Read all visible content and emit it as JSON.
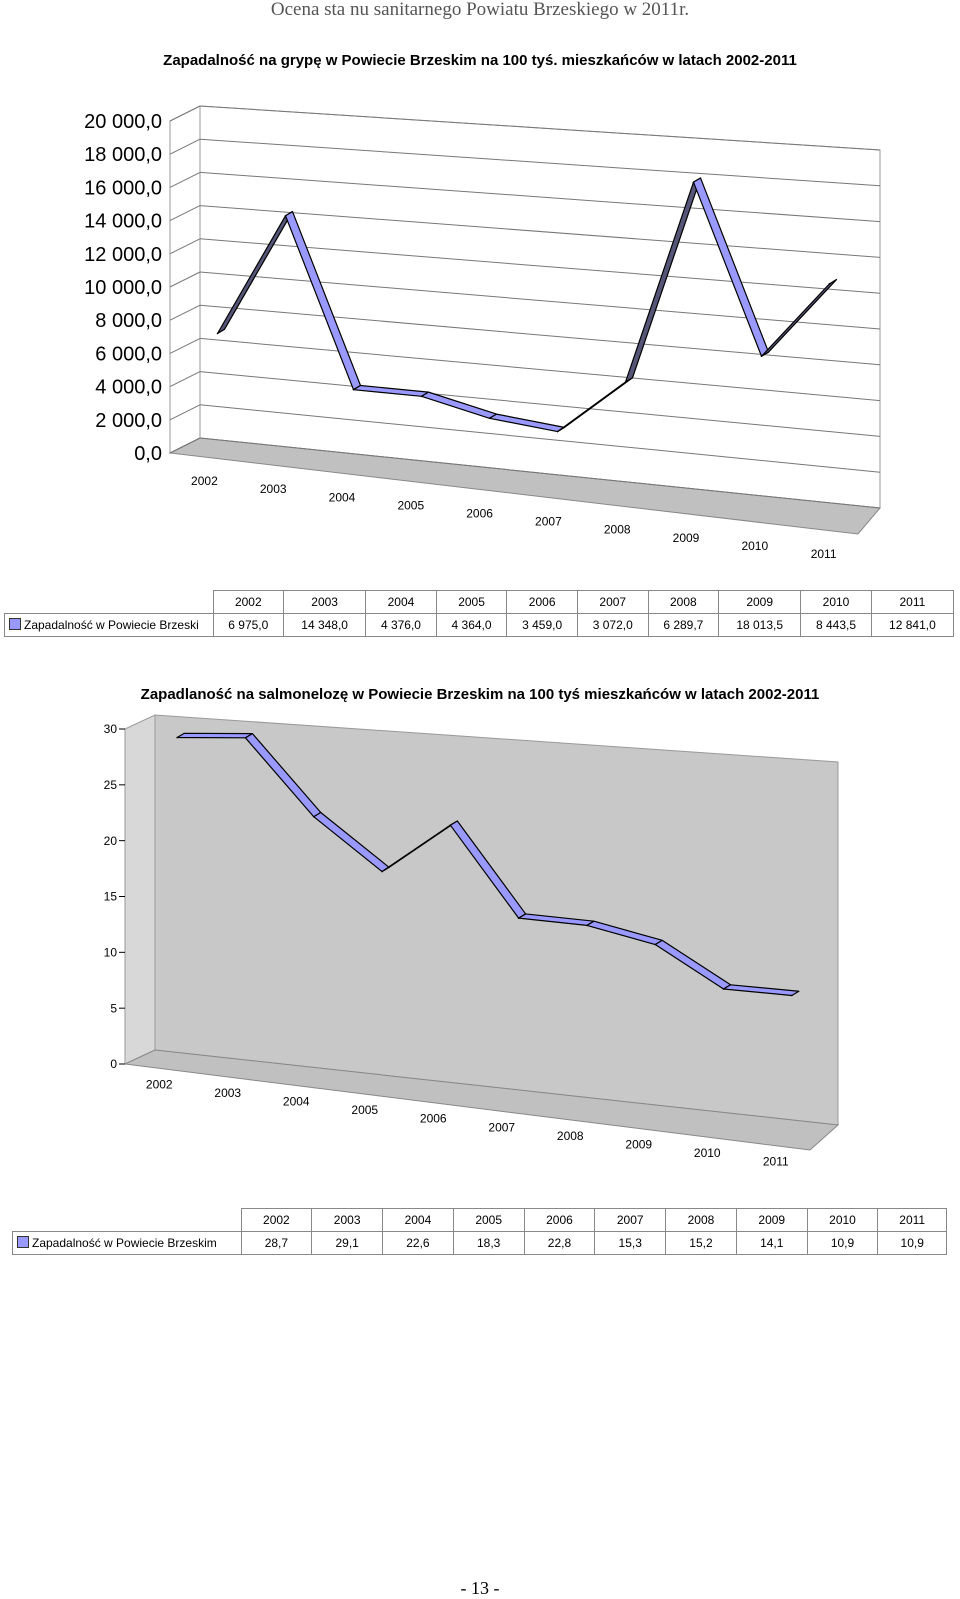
{
  "page": {
    "header": "Ocena sta nu sanitarnego Powiatu Brzeskiego w 2011r.",
    "page_number": "- 13 -"
  },
  "chart_data": [
    {
      "type": "line",
      "title": "Zapadalność na grypę w Powiecie Brzeskim na 100 tyś. mieszkańców w latach 2002-2011",
      "categories": [
        "2002",
        "2003",
        "2004",
        "2005",
        "2006",
        "2007",
        "2008",
        "2009",
        "2010",
        "2011"
      ],
      "series": [
        {
          "name": "Zapadalność w Powiecie Brzeski",
          "values": [
            6975.0,
            14348.0,
            4376.0,
            4364.0,
            3459.0,
            3072.0,
            6289.7,
            18013.5,
            8443.5,
            12841.0
          ],
          "display": [
            "6 975,0",
            "14 348,0",
            "4 376,0",
            "4 364,0",
            "3 459,0",
            "3 072,0",
            "6 289,7",
            "18 013,5",
            "8 443,5",
            "12 841,0"
          ]
        }
      ],
      "ylim": [
        0,
        20000
      ],
      "yticks": [
        "0,0",
        "2 000,0",
        "4 000,0",
        "6 000,0",
        "8 000,0",
        "10 000,0",
        "12 000,0",
        "14 000,0",
        "16 000,0",
        "18 000,0",
        "20 000,0"
      ],
      "grid": true,
      "legend": "data-table",
      "series_color": "#9999ff"
    },
    {
      "type": "line",
      "title": "Zapadlaność na salmonelozę w Powiecie Brzeskim na 100 tyś mieszkańców w latach 2002-2011",
      "categories": [
        "2002",
        "2003",
        "2004",
        "2005",
        "2006",
        "2007",
        "2008",
        "2009",
        "2010",
        "2011"
      ],
      "series": [
        {
          "name": "Zapadalność w Powiecie Brzeskim",
          "values": [
            28.7,
            29.1,
            22.6,
            18.3,
            22.8,
            15.3,
            15.2,
            14.1,
            10.9,
            10.9
          ],
          "display": [
            "28,7",
            "29,1",
            "22,6",
            "18,3",
            "22,8",
            "15,3",
            "15,2",
            "14,1",
            "10,9",
            "10,9"
          ]
        }
      ],
      "ylim": [
        0,
        30
      ],
      "yticks": [
        "0",
        "5",
        "10",
        "15",
        "20",
        "25",
        "30"
      ],
      "grid": false,
      "legend": "data-table",
      "series_color": "#9999ff"
    }
  ]
}
